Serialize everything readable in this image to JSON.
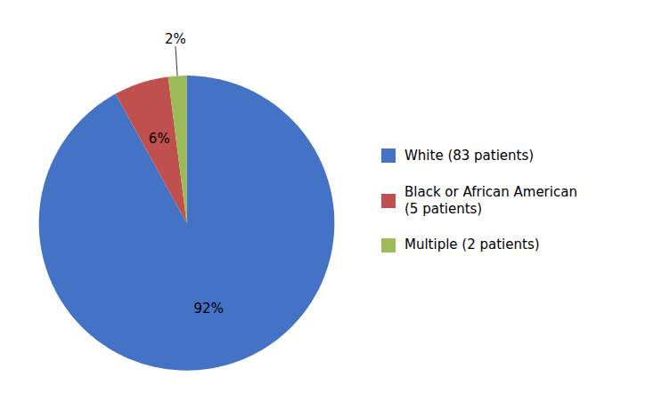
{
  "chart_data": {
    "type": "pie",
    "categories": [
      "White (83 patients)",
      "Black or African American\n(5 patients)",
      "Multiple (2 patients)"
    ],
    "values": [
      92,
      6,
      2
    ],
    "value_labels": [
      "92%",
      "6%",
      "2%"
    ],
    "colors": [
      "#4472C4",
      "#C0504D",
      "#9BBB59"
    ],
    "data_labels": true,
    "legend": "right"
  }
}
